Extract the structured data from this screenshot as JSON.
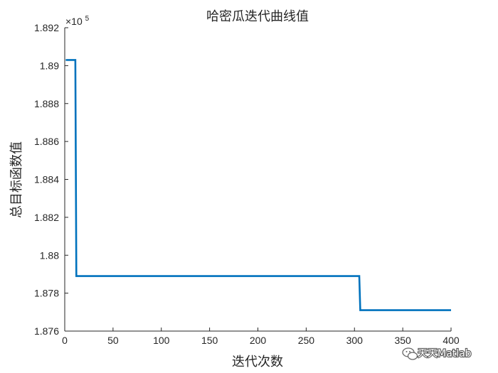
{
  "chart_data": {
    "type": "line",
    "title": "哈密瓜迭代曲线值",
    "xlabel": "迭代次数",
    "ylabel": "总目标函数值",
    "xlim": [
      0,
      400
    ],
    "ylim": [
      1.876,
      1.892
    ],
    "y_exponent_label": "×10",
    "y_exponent_power": "5",
    "x_ticks": [
      0,
      50,
      100,
      150,
      200,
      250,
      300,
      350,
      400
    ],
    "x_tick_labels": [
      "0",
      "50",
      "100",
      "150",
      "200",
      "250",
      "300",
      "350",
      "400"
    ],
    "y_ticks": [
      1.876,
      1.878,
      1.88,
      1.882,
      1.884,
      1.886,
      1.888,
      1.89,
      1.892
    ],
    "y_tick_labels": [
      "1.876",
      "1.878",
      "1.88",
      "1.882",
      "1.884",
      "1.886",
      "1.888",
      "1.89",
      "1.892"
    ],
    "grid": false,
    "series": [
      {
        "color": "#0072BD",
        "x": [
          1,
          11,
          12,
          305,
          306,
          400
        ],
        "y": [
          1.8903,
          1.8903,
          1.8789,
          1.8789,
          1.8771,
          1.8771
        ]
      }
    ]
  },
  "watermark": {
    "text": "天天Matlab",
    "icon": "wechat-icon"
  },
  "colors": {
    "axis": "#262626",
    "line": "#0072BD",
    "background": "#ffffff"
  }
}
